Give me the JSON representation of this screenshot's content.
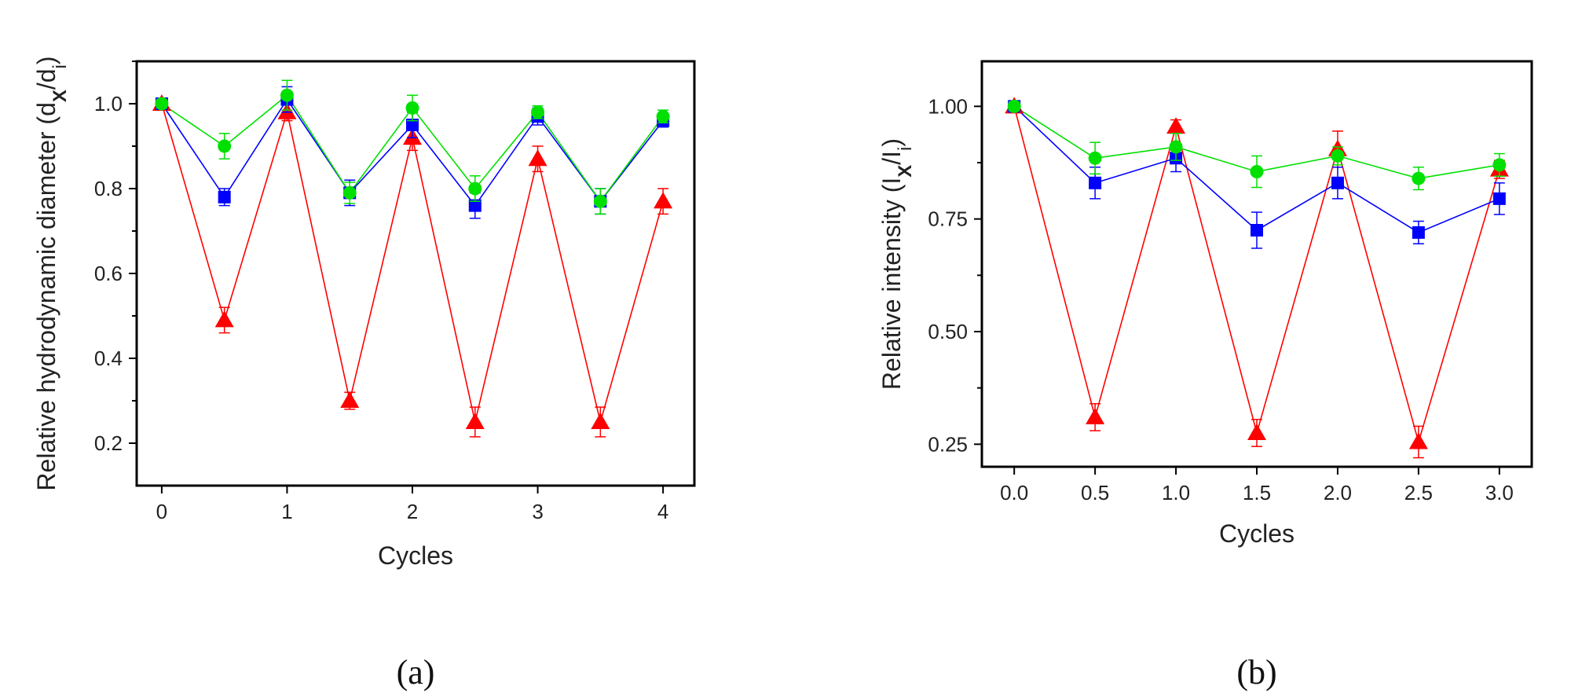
{
  "chart_data": [
    {
      "type": "line",
      "caption": "(a)",
      "xlabel": "Cycles",
      "ylabel": {
        "main": "Relative hydrodynamic diameter (d",
        "sub1": "X",
        "mid": "/d",
        "sub2": "i",
        "end": ")"
      },
      "xlim": [
        -0.2,
        4.25
      ],
      "ylim": [
        0.1,
        1.1
      ],
      "xticks": [
        0,
        1,
        2,
        3,
        4
      ],
      "xtick_labels": [
        "0",
        "1",
        "2",
        "3",
        "4"
      ],
      "yticks": [
        0.2,
        0.4,
        0.6,
        0.8,
        1.0
      ],
      "ytick_labels": [
        "0.2",
        "0.4",
        "0.6",
        "0.8",
        "1.0"
      ],
      "x": [
        0,
        0.5,
        1,
        1.5,
        2,
        2.5,
        3,
        3.5,
        4
      ],
      "series": [
        {
          "color": "#ff0000",
          "marker": "triangle",
          "values": [
            1.0,
            0.49,
            0.98,
            0.3,
            0.92,
            0.25,
            0.87,
            0.25,
            0.77
          ],
          "errors": [
            0.01,
            0.03,
            0.02,
            0.02,
            0.03,
            0.035,
            0.03,
            0.035,
            0.03
          ]
        },
        {
          "color": "#0000ff",
          "marker": "square",
          "values": [
            1.0,
            0.78,
            1.01,
            0.79,
            0.95,
            0.76,
            0.97,
            0.77,
            0.96
          ],
          "errors": [
            0.01,
            0.02,
            0.03,
            0.03,
            0.03,
            0.03,
            0.02,
            0.03,
            0.015
          ]
        },
        {
          "color": "#00e000",
          "marker": "circle",
          "values": [
            1.0,
            0.9,
            1.02,
            0.79,
            0.99,
            0.8,
            0.98,
            0.77,
            0.97
          ],
          "errors": [
            0.01,
            0.03,
            0.035,
            0.025,
            0.03,
            0.03,
            0.015,
            0.03,
            0.015
          ]
        }
      ]
    },
    {
      "type": "line",
      "caption": "(b)",
      "xlabel": "Cycles",
      "ylabel": {
        "main": "Relative intensity (I",
        "sub1": "X",
        "mid": "/I",
        "sub2": "i",
        "end": ")"
      },
      "xlim": [
        -0.2,
        3.2
      ],
      "ylim": [
        0.2,
        1.1
      ],
      "xticks": [
        0,
        0.5,
        1,
        1.5,
        2,
        2.5,
        3
      ],
      "xtick_labels": [
        "0.0",
        "0.5",
        "1.0",
        "1.5",
        "2.0",
        "2.5",
        "3.0"
      ],
      "yticks": [
        0.25,
        0.5,
        0.75,
        1.0
      ],
      "ytick_labels": [
        "0.25",
        "0.50",
        "0.75",
        "1.00"
      ],
      "x": [
        0,
        0.5,
        1,
        1.5,
        2,
        2.5,
        3
      ],
      "series": [
        {
          "color": "#ff0000",
          "marker": "triangle",
          "values": [
            1.0,
            0.31,
            0.955,
            0.275,
            0.905,
            0.255,
            0.86
          ],
          "errors": [
            0.01,
            0.03,
            0.015,
            0.03,
            0.04,
            0.035,
            0.02
          ]
        },
        {
          "color": "#0000ff",
          "marker": "square",
          "values": [
            1.0,
            0.83,
            0.885,
            0.725,
            0.83,
            0.72,
            0.795
          ],
          "errors": [
            0.01,
            0.035,
            0.03,
            0.04,
            0.035,
            0.025,
            0.035
          ]
        },
        {
          "color": "#00e000",
          "marker": "circle",
          "values": [
            1.0,
            0.885,
            0.91,
            0.855,
            0.89,
            0.84,
            0.87
          ],
          "errors": [
            0.01,
            0.035,
            0.03,
            0.035,
            0.02,
            0.025,
            0.025
          ]
        }
      ]
    }
  ]
}
